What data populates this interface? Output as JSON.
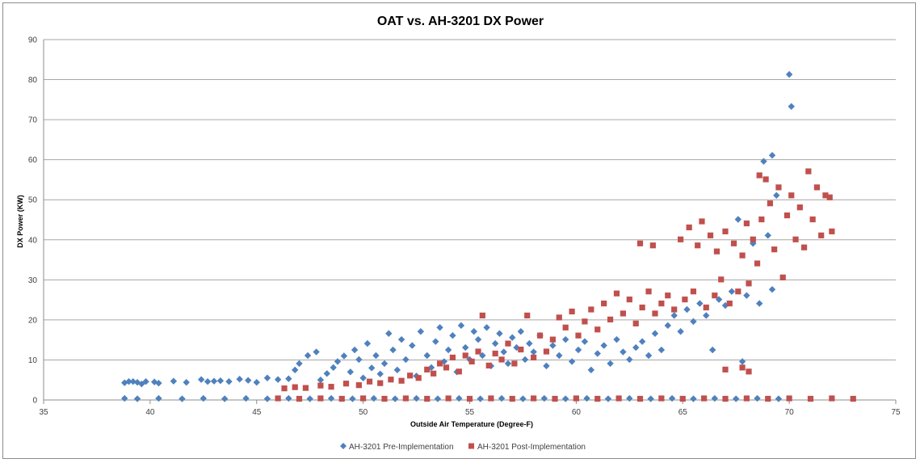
{
  "chart_data": {
    "type": "scatter",
    "title": "OAT vs. AH-3201 DX Power",
    "xlabel": "Outside Air Temperature (Degree-F)",
    "ylabel": "DX Power (KW)",
    "xlim": [
      35,
      75
    ],
    "ylim": [
      0,
      90
    ],
    "x_ticks": [
      35,
      40,
      45,
      50,
      55,
      60,
      65,
      70,
      75
    ],
    "y_ticks": [
      0,
      10,
      20,
      30,
      40,
      50,
      60,
      70,
      80,
      90
    ],
    "grid": "horizontal",
    "legend_position": "bottom",
    "series": [
      {
        "name": "AH-3201 Pre-Implementation",
        "color": "#4f81bd",
        "marker": "diamond",
        "points": [
          [
            38.8,
            4.3
          ],
          [
            39.0,
            4.6
          ],
          [
            39.2,
            4.6
          ],
          [
            39.4,
            4.4
          ],
          [
            39.6,
            4.0
          ],
          [
            39.8,
            4.6
          ],
          [
            40.2,
            4.5
          ],
          [
            40.4,
            4.2
          ],
          [
            41.1,
            4.7
          ],
          [
            41.7,
            4.4
          ],
          [
            42.4,
            5.1
          ],
          [
            42.7,
            4.6
          ],
          [
            43.0,
            4.7
          ],
          [
            43.3,
            4.8
          ],
          [
            43.7,
            4.6
          ],
          [
            44.2,
            5.2
          ],
          [
            44.6,
            4.9
          ],
          [
            45.0,
            4.4
          ],
          [
            45.5,
            5.5
          ],
          [
            46.0,
            5.1
          ],
          [
            46.5,
            5.3
          ],
          [
            46.8,
            7.5
          ],
          [
            47.0,
            9.1
          ],
          [
            47.4,
            11.1
          ],
          [
            47.8,
            12.0
          ],
          [
            48.0,
            5.0
          ],
          [
            48.3,
            6.6
          ],
          [
            48.6,
            8.1
          ],
          [
            48.8,
            9.6
          ],
          [
            49.1,
            11.0
          ],
          [
            49.4,
            7.0
          ],
          [
            49.6,
            12.5
          ],
          [
            49.8,
            10.1
          ],
          [
            50.0,
            5.5
          ],
          [
            50.2,
            14.1
          ],
          [
            50.4,
            8.0
          ],
          [
            50.6,
            11.1
          ],
          [
            50.8,
            6.5
          ],
          [
            51.0,
            9.1
          ],
          [
            51.2,
            16.6
          ],
          [
            51.4,
            12.5
          ],
          [
            51.6,
            7.5
          ],
          [
            51.8,
            15.1
          ],
          [
            52.0,
            10.1
          ],
          [
            52.3,
            13.6
          ],
          [
            52.5,
            6.0
          ],
          [
            52.7,
            17.1
          ],
          [
            53.0,
            11.1
          ],
          [
            53.2,
            8.1
          ],
          [
            53.4,
            14.6
          ],
          [
            53.6,
            18.1
          ],
          [
            53.8,
            9.6
          ],
          [
            54.0,
            12.5
          ],
          [
            54.2,
            16.1
          ],
          [
            54.4,
            7.0
          ],
          [
            54.6,
            18.6
          ],
          [
            54.8,
            13.1
          ],
          [
            55.0,
            10.1
          ],
          [
            55.2,
            17.1
          ],
          [
            55.4,
            15.1
          ],
          [
            55.6,
            11.1
          ],
          [
            55.8,
            18.1
          ],
          [
            56.0,
            8.5
          ],
          [
            56.2,
            14.1
          ],
          [
            56.4,
            16.6
          ],
          [
            56.6,
            12.0
          ],
          [
            56.8,
            9.1
          ],
          [
            57.0,
            15.6
          ],
          [
            57.2,
            13.1
          ],
          [
            57.4,
            17.1
          ],
          [
            57.6,
            10.1
          ],
          [
            57.8,
            14.1
          ],
          [
            58.0,
            12.0
          ],
          [
            58.3,
            16.1
          ],
          [
            58.6,
            8.5
          ],
          [
            58.9,
            13.6
          ],
          [
            59.2,
            11.1
          ],
          [
            59.5,
            15.1
          ],
          [
            59.8,
            9.6
          ],
          [
            60.1,
            12.5
          ],
          [
            60.4,
            14.6
          ],
          [
            60.7,
            7.5
          ],
          [
            61.0,
            11.6
          ],
          [
            61.3,
            13.6
          ],
          [
            61.6,
            9.1
          ],
          [
            61.9,
            15.1
          ],
          [
            62.2,
            12.0
          ],
          [
            62.5,
            10.1
          ],
          [
            62.8,
            13.1
          ],
          [
            63.1,
            14.6
          ],
          [
            63.4,
            11.1
          ],
          [
            63.7,
            16.6
          ],
          [
            64.0,
            12.5
          ],
          [
            64.3,
            18.6
          ],
          [
            64.6,
            21.1
          ],
          [
            64.9,
            17.1
          ],
          [
            65.2,
            22.6
          ],
          [
            65.5,
            19.6
          ],
          [
            65.8,
            24.1
          ],
          [
            66.1,
            21.1
          ],
          [
            66.4,
            12.5
          ],
          [
            66.7,
            25.1
          ],
          [
            67.0,
            23.6
          ],
          [
            67.3,
            27.1
          ],
          [
            67.6,
            45.1
          ],
          [
            67.8,
            9.6
          ],
          [
            68.0,
            26.1
          ],
          [
            68.3,
            39.1
          ],
          [
            68.6,
            24.1
          ],
          [
            68.8,
            59.6
          ],
          [
            69.0,
            41.1
          ],
          [
            69.2,
            61.1
          ],
          [
            69.4,
            51.1
          ],
          [
            69.2,
            27.6
          ],
          [
            70.0,
            81.3
          ],
          [
            70.1,
            73.3
          ],
          [
            38.8,
            0.4
          ],
          [
            39.4,
            0.3
          ],
          [
            40.4,
            0.4
          ],
          [
            41.5,
            0.3
          ],
          [
            42.5,
            0.4
          ],
          [
            43.5,
            0.3
          ],
          [
            44.5,
            0.4
          ],
          [
            45.5,
            0.3
          ],
          [
            46.5,
            0.4
          ],
          [
            47.5,
            0.3
          ],
          [
            48.5,
            0.4
          ],
          [
            49.5,
            0.3
          ],
          [
            50.5,
            0.4
          ],
          [
            51.5,
            0.3
          ],
          [
            52.5,
            0.4
          ],
          [
            53.5,
            0.3
          ],
          [
            54.5,
            0.4
          ],
          [
            55.5,
            0.3
          ],
          [
            56.5,
            0.4
          ],
          [
            57.5,
            0.3
          ],
          [
            58.5,
            0.4
          ],
          [
            59.5,
            0.3
          ],
          [
            60.5,
            0.4
          ],
          [
            61.5,
            0.3
          ],
          [
            62.5,
            0.4
          ],
          [
            63.5,
            0.3
          ],
          [
            64.5,
            0.4
          ],
          [
            65.5,
            0.3
          ],
          [
            66.5,
            0.4
          ],
          [
            67.5,
            0.3
          ],
          [
            68.5,
            0.4
          ],
          [
            69.5,
            0.3
          ]
        ]
      },
      {
        "name": "AH-3201 Post-Implementation",
        "color": "#c0504d",
        "marker": "square",
        "points": [
          [
            46.3,
            2.9
          ],
          [
            46.8,
            3.2
          ],
          [
            47.3,
            3.0
          ],
          [
            48.0,
            3.6
          ],
          [
            48.5,
            3.3
          ],
          [
            49.2,
            4.1
          ],
          [
            49.8,
            3.7
          ],
          [
            50.3,
            4.6
          ],
          [
            50.8,
            4.2
          ],
          [
            51.3,
            5.1
          ],
          [
            51.8,
            4.8
          ],
          [
            52.2,
            6.1
          ],
          [
            52.6,
            5.5
          ],
          [
            53.0,
            7.6
          ],
          [
            53.3,
            6.6
          ],
          [
            53.6,
            9.1
          ],
          [
            53.9,
            8.1
          ],
          [
            54.2,
            10.6
          ],
          [
            54.5,
            7.1
          ],
          [
            54.8,
            11.1
          ],
          [
            55.1,
            9.6
          ],
          [
            55.4,
            12.1
          ],
          [
            55.6,
            21.1
          ],
          [
            55.9,
            8.6
          ],
          [
            56.2,
            11.6
          ],
          [
            56.5,
            10.1
          ],
          [
            56.8,
            14.1
          ],
          [
            57.1,
            9.1
          ],
          [
            57.4,
            12.6
          ],
          [
            57.7,
            21.1
          ],
          [
            58.0,
            10.6
          ],
          [
            58.3,
            16.1
          ],
          [
            58.6,
            12.1
          ],
          [
            58.9,
            15.1
          ],
          [
            59.2,
            20.6
          ],
          [
            59.5,
            18.1
          ],
          [
            59.8,
            22.1
          ],
          [
            60.1,
            16.1
          ],
          [
            60.4,
            19.6
          ],
          [
            60.7,
            22.6
          ],
          [
            61.0,
            17.6
          ],
          [
            61.3,
            24.1
          ],
          [
            61.6,
            20.1
          ],
          [
            61.9,
            26.6
          ],
          [
            62.2,
            21.6
          ],
          [
            62.5,
            25.1
          ],
          [
            62.8,
            19.1
          ],
          [
            63.0,
            39.1
          ],
          [
            63.1,
            23.1
          ],
          [
            63.4,
            27.1
          ],
          [
            63.6,
            38.6
          ],
          [
            63.7,
            21.6
          ],
          [
            64.0,
            24.1
          ],
          [
            64.3,
            26.1
          ],
          [
            64.6,
            22.6
          ],
          [
            64.9,
            40.1
          ],
          [
            65.1,
            25.1
          ],
          [
            65.3,
            43.1
          ],
          [
            65.5,
            27.1
          ],
          [
            65.7,
            38.6
          ],
          [
            65.9,
            44.6
          ],
          [
            66.1,
            23.1
          ],
          [
            66.3,
            41.1
          ],
          [
            66.5,
            26.1
          ],
          [
            66.6,
            37.1
          ],
          [
            66.8,
            30.1
          ],
          [
            67.0,
            42.1
          ],
          [
            67.2,
            24.1
          ],
          [
            67.4,
            39.1
          ],
          [
            67.6,
            27.1
          ],
          [
            67.8,
            36.1
          ],
          [
            68.0,
            44.1
          ],
          [
            68.1,
            29.1
          ],
          [
            68.3,
            40.1
          ],
          [
            68.5,
            34.1
          ],
          [
            68.6,
            56.1
          ],
          [
            68.7,
            45.1
          ],
          [
            68.9,
            55.1
          ],
          [
            69.1,
            49.1
          ],
          [
            69.3,
            37.6
          ],
          [
            69.5,
            53.1
          ],
          [
            69.7,
            30.6
          ],
          [
            69.9,
            46.1
          ],
          [
            70.1,
            51.1
          ],
          [
            70.3,
            40.1
          ],
          [
            70.5,
            48.1
          ],
          [
            70.7,
            38.1
          ],
          [
            70.9,
            57.1
          ],
          [
            71.1,
            45.1
          ],
          [
            71.3,
            53.1
          ],
          [
            71.5,
            41.1
          ],
          [
            71.7,
            51.1
          ],
          [
            71.9,
            50.6
          ],
          [
            72.0,
            42.1
          ],
          [
            67.0,
            7.6
          ],
          [
            68.1,
            7.1
          ],
          [
            67.8,
            8.1
          ],
          [
            46.0,
            0.4
          ],
          [
            47.0,
            0.3
          ],
          [
            48.0,
            0.4
          ],
          [
            49.0,
            0.3
          ],
          [
            50.0,
            0.4
          ],
          [
            51.0,
            0.3
          ],
          [
            52.0,
            0.4
          ],
          [
            53.0,
            0.3
          ],
          [
            54.0,
            0.4
          ],
          [
            55.0,
            0.3
          ],
          [
            56.0,
            0.4
          ],
          [
            57.0,
            0.3
          ],
          [
            58.0,
            0.4
          ],
          [
            59.0,
            0.3
          ],
          [
            60.0,
            0.4
          ],
          [
            61.0,
            0.3
          ],
          [
            62.0,
            0.4
          ],
          [
            63.0,
            0.3
          ],
          [
            64.0,
            0.4
          ],
          [
            65.0,
            0.3
          ],
          [
            66.0,
            0.4
          ],
          [
            67.0,
            0.3
          ],
          [
            68.0,
            0.4
          ],
          [
            69.0,
            0.3
          ],
          [
            70.0,
            0.4
          ],
          [
            71.0,
            0.3
          ],
          [
            72.0,
            0.4
          ],
          [
            73.0,
            0.3
          ]
        ]
      }
    ]
  }
}
